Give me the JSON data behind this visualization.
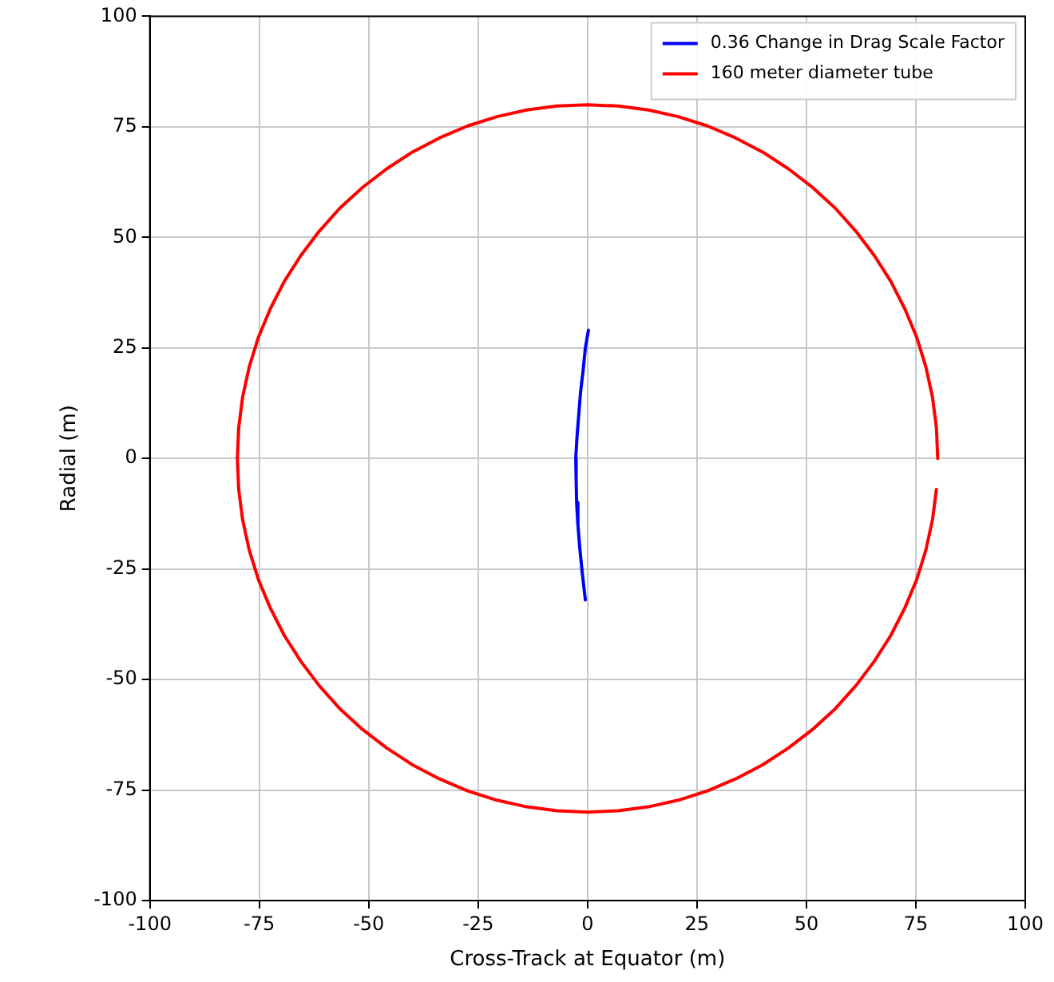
{
  "chart_data": {
    "type": "line",
    "xlabel": "Cross-Track at Equator (m)",
    "ylabel": "Radial (m)",
    "xlim": [
      -100,
      100
    ],
    "ylim": [
      -100,
      100
    ],
    "xticks": [
      -100,
      -75,
      -50,
      -25,
      0,
      25,
      50,
      75,
      100
    ],
    "yticks": [
      -100,
      -75,
      -50,
      -25,
      0,
      25,
      50,
      75,
      100
    ],
    "grid": true,
    "legend": "top right",
    "marker": "none",
    "line_style": "solid",
    "series": [
      {
        "name": "0.36 Change in Drag Scale Factor",
        "color": "#0000ff",
        "x": [
          0.2,
          -0.5,
          -1,
          -1.6,
          -2,
          -2.4,
          -2.7,
          -2.6,
          -2.5,
          -2.2,
          -1.8,
          -1.2,
          -0.5
        ],
        "values": [
          29,
          25,
          20,
          15,
          10,
          5,
          0,
          -5,
          -10,
          -15,
          -20,
          -26,
          -32
        ]
      },
      {
        "name": "160 meter diameter tube",
        "color": "#ff0000",
        "x": [
          80,
          79.7,
          78.8,
          77.3,
          75.2,
          72.5,
          69.3,
          65.5,
          61.3,
          56.6,
          51.4,
          45.9,
          40,
          33.8,
          27.4,
          20.7,
          13.9,
          7,
          0,
          -7,
          -13.9,
          -20.7,
          -27.4,
          -33.8,
          -40,
          -45.9,
          -51.4,
          -56.6,
          -61.3,
          -65.5,
          -69.3,
          -72.5,
          -75.2,
          -77.3,
          -78.8,
          -79.7,
          -80,
          -79.7,
          -78.8,
          -77.3,
          -75.2,
          -72.5,
          -69.3,
          -65.5,
          -61.3,
          -56.6,
          -51.4,
          -45.9,
          -40,
          -33.8,
          -27.4,
          -20.7,
          -13.9,
          -7,
          0,
          7,
          13.9,
          20.7,
          27.4,
          33.8,
          40,
          45.9,
          51.4,
          56.6,
          61.3,
          65.5,
          69.3,
          72.5,
          75.2,
          77.3,
          78.8,
          79.7
        ],
        "values": [
          0,
          7,
          13.9,
          20.7,
          27.4,
          33.8,
          40,
          45.9,
          51.4,
          56.6,
          61.3,
          65.5,
          69.3,
          72.5,
          75.2,
          77.3,
          78.8,
          79.7,
          80,
          79.7,
          78.8,
          77.3,
          75.2,
          72.5,
          69.3,
          65.5,
          61.3,
          56.6,
          51.4,
          45.9,
          40,
          33.8,
          27.4,
          20.7,
          13.9,
          7,
          0,
          -7,
          -13.9,
          -20.7,
          -27.4,
          -33.8,
          -40,
          -45.9,
          -51.4,
          -56.6,
          -61.3,
          -65.5,
          -69.3,
          -72.5,
          -75.2,
          -77.3,
          -78.8,
          -79.7,
          -80,
          -79.7,
          -78.8,
          -77.3,
          -75.2,
          -72.5,
          -69.3,
          -65.5,
          -61.3,
          -56.6,
          -51.4,
          -45.9,
          -40,
          -33.8,
          -27.4,
          -20.7,
          -13.9,
          -7
        ]
      }
    ]
  }
}
